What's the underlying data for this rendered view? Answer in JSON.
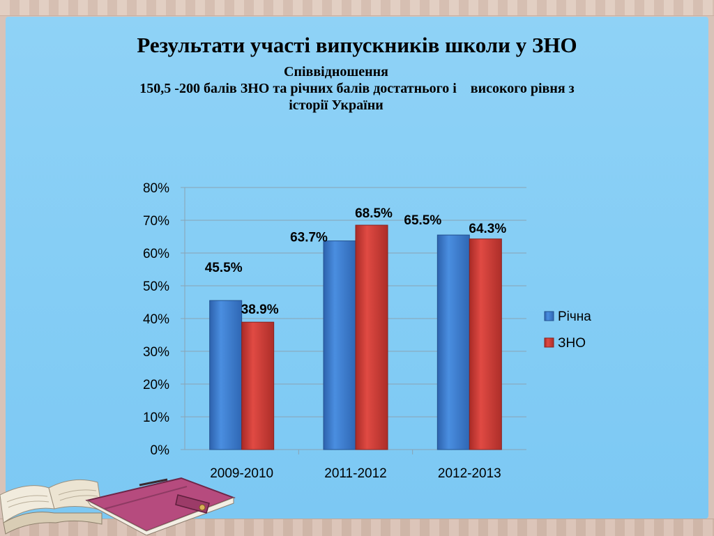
{
  "slide": {
    "title": "Результати участі випускників школи у ЗНО",
    "subtitle_line1": "Співвідношення",
    "subtitle_line2": "150,5 -200 балів ЗНО та річних балів достатнього і    високого рівня з",
    "subtitle_line3": "історії України"
  },
  "colors": {
    "panel": "#86cef5",
    "series_1": "#3f7fd0",
    "series_2": "#cf3b35",
    "grid": "#8aa3b3"
  },
  "chart_data": {
    "type": "bar",
    "categories": [
      "2009-2010",
      "2011-2012",
      "2012-2013"
    ],
    "series": [
      {
        "name": "Річна",
        "values": [
          45.5,
          63.7,
          65.5
        ],
        "labels": [
          "45.5%",
          "63.7%",
          "65.5%"
        ]
      },
      {
        "name": "ЗНО",
        "values": [
          38.9,
          68.5,
          64.3
        ],
        "labels": [
          "38.9%",
          "68.5%",
          "64.3%"
        ]
      }
    ],
    "ylim": [
      0,
      80
    ],
    "yticks": [
      "0%",
      "10%",
      "20%",
      "30%",
      "40%",
      "50%",
      "60%",
      "70%",
      "80%"
    ],
    "grid": true,
    "legend_position": "right"
  }
}
